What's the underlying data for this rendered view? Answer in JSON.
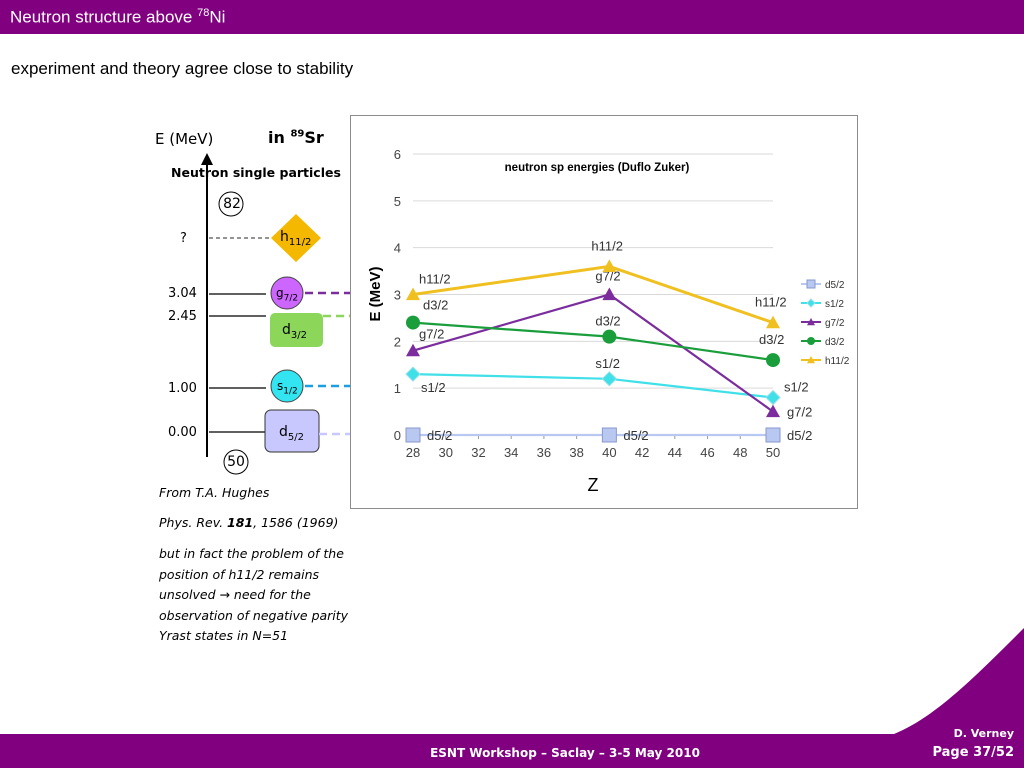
{
  "header": {
    "title_prefix": "Neutron structure above ",
    "title_mass": "78",
    "title_element": "Ni"
  },
  "subtitle": "experiment and theory agree close to stability",
  "level_scheme": {
    "axis_label": "E (MeV)",
    "in_label_prefix": "in ",
    "in_label_mass": "89",
    "in_label_element": "Sr",
    "heading": "Neutron single particles",
    "shell_top": "82",
    "shell_bottom": "50",
    "levels": [
      {
        "energy": "?",
        "orbital": "h",
        "j": "11/2",
        "color": "#f5b800"
      },
      {
        "energy": "3.04",
        "orbital": "g",
        "j": "7/2",
        "color": "#cc66ff"
      },
      {
        "energy": "2.45",
        "orbital": "d",
        "j": "3/2",
        "color": "#8cd65a"
      },
      {
        "energy": "1.00",
        "orbital": "s",
        "j": "1/2",
        "color": "#33e5f0"
      },
      {
        "energy": "0.00",
        "orbital": "d",
        "j": "5/2",
        "color": "#c8c8ff"
      }
    ]
  },
  "notes": {
    "ref_line1": "From T.A. Hughes",
    "ref_journal": "Phys. Rev. ",
    "ref_volume": "181",
    "ref_rest": ", 1586 (1969)",
    "comment_lines": [
      "but in fact  the problem of the",
      "position of h11/2 remains",
      "unsolved  → need for the",
      "observation of negative parity",
      "Yrast states in N=51"
    ]
  },
  "chart_data": {
    "type": "line",
    "title": "neutron sp energies (Duflo Zuker)",
    "xlabel": "Z",
    "ylabel": "E (MeV)",
    "xlim": [
      28,
      50
    ],
    "ylim": [
      0,
      6
    ],
    "x_ticks": [
      "28",
      "30",
      "32",
      "34",
      "36",
      "38",
      "40",
      "42",
      "44",
      "46",
      "48",
      "50"
    ],
    "y_ticks": [
      "0",
      "1",
      "2",
      "3",
      "4",
      "5",
      "6"
    ],
    "grid": "horizontal",
    "legend_position": "right",
    "series": [
      {
        "name": "d5/2",
        "color": "#b8c8f0",
        "marker": "square",
        "x": [
          28,
          40,
          50
        ],
        "values": [
          0.0,
          0.0,
          0.0
        ],
        "point_labels": [
          "d5/2",
          "d5/2",
          "d5/2"
        ]
      },
      {
        "name": "s1/2",
        "color": "#40e0e8",
        "marker": "diamond",
        "x": [
          28,
          40,
          50
        ],
        "values": [
          1.3,
          1.2,
          0.8
        ],
        "point_labels": [
          "s1/2",
          "s1/2",
          "s1/2"
        ]
      },
      {
        "name": "g7/2",
        "color": "#7b2d9e",
        "marker": "triangle",
        "x": [
          28,
          40,
          50
        ],
        "values": [
          1.8,
          3.0,
          0.5
        ],
        "point_labels": [
          "g7/2",
          "g7/2",
          "g7/2"
        ]
      },
      {
        "name": "d3/2",
        "color": "#1a9e3c",
        "marker": "circle",
        "x": [
          28,
          40,
          50
        ],
        "values": [
          2.4,
          2.1,
          1.6
        ],
        "point_labels": [
          "d3/2",
          "d3/2",
          "d3/2"
        ]
      },
      {
        "name": "h11/2",
        "color": "#f0c020",
        "marker": "triangle",
        "x": [
          28,
          40,
          50
        ],
        "values": [
          3.0,
          3.6,
          2.4
        ],
        "point_labels": [
          "h11/2",
          "h11/2",
          "h11/2"
        ]
      }
    ]
  },
  "footer": {
    "text": "ESNT Workshop –   Saclay –   3-5 May 2010",
    "author": "D. Verney",
    "page": "Page 37/52"
  }
}
